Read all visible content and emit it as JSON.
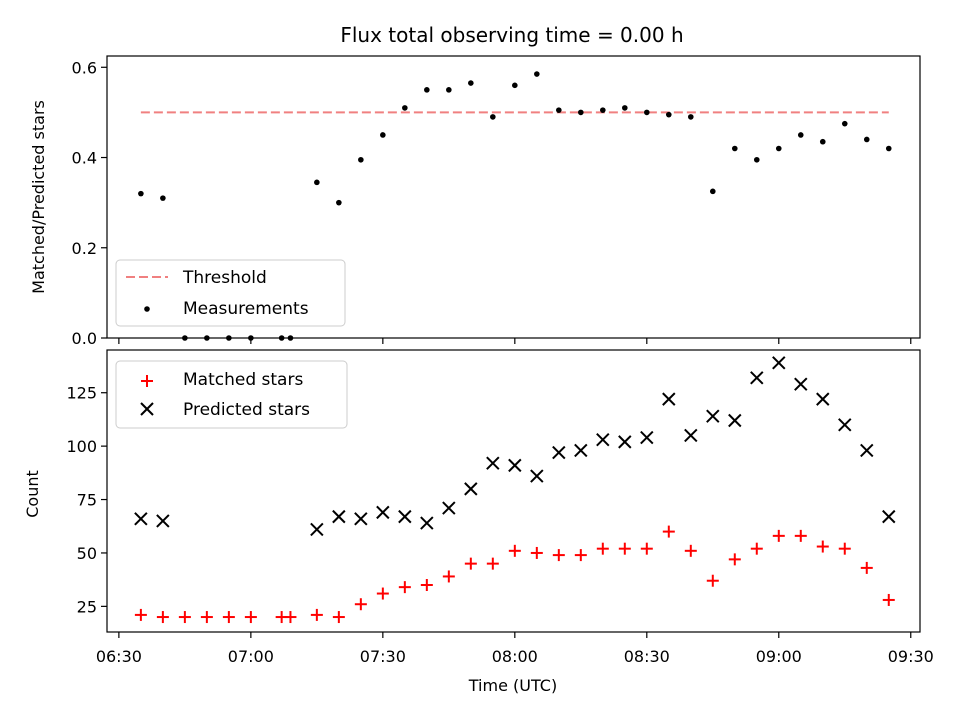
{
  "chart_data": [
    {
      "type": "scatter",
      "title": "Flux total observing time = 0.00 h",
      "ylabel": "Matched/Predicted stars",
      "ylim": [
        0,
        0.6
      ],
      "yticks": [
        "0.0",
        "0.2",
        "0.4",
        "0.6"
      ],
      "legend_position": "lower-left",
      "threshold": {
        "name": "Threshold",
        "value": 0.5,
        "x_start": "06:35",
        "x_end": "09:25",
        "color": "#f08080"
      },
      "series": [
        {
          "name": "Measurements",
          "color": "#000000",
          "x": [
            "06:35",
            "06:40",
            "06:45",
            "06:50",
            "06:55",
            "07:00",
            "07:07",
            "07:09",
            "07:15",
            "07:20",
            "07:25",
            "07:30",
            "07:35",
            "07:40",
            "07:45",
            "07:50",
            "07:55",
            "08:00",
            "08:05",
            "08:10",
            "08:15",
            "08:20",
            "08:25",
            "08:30",
            "08:35",
            "08:40",
            "08:45",
            "08:50",
            "08:55",
            "09:00",
            "09:05",
            "09:10",
            "09:15",
            "09:20",
            "09:25"
          ],
          "y": [
            0.32,
            0.31,
            0.0,
            0.0,
            0.0,
            0.0,
            0.0,
            0.0,
            0.345,
            0.3,
            0.395,
            0.45,
            0.51,
            0.55,
            0.55,
            0.565,
            0.49,
            0.56,
            0.585,
            0.505,
            0.5,
            0.505,
            0.51,
            0.5,
            0.495,
            0.49,
            0.325,
            0.42,
            0.395,
            0.42,
            0.45,
            0.435,
            0.475,
            0.44,
            0.42
          ]
        }
      ]
    },
    {
      "type": "scatter",
      "xlabel": "Time (UTC)",
      "ylabel": "Count",
      "ylim": [
        13,
        145
      ],
      "yticks": [
        "25",
        "50",
        "75",
        "100",
        "125"
      ],
      "xlim": [
        "06:30",
        "09:30"
      ],
      "xticks": [
        "06:30",
        "07:00",
        "07:30",
        "08:00",
        "08:30",
        "09:00",
        "09:30"
      ],
      "legend_position": "upper-left",
      "series": [
        {
          "name": "Matched stars",
          "marker": "plus",
          "color": "#ff0000",
          "x": [
            "06:35",
            "06:40",
            "06:45",
            "06:50",
            "06:55",
            "07:00",
            "07:07",
            "07:09",
            "07:15",
            "07:20",
            "07:25",
            "07:30",
            "07:35",
            "07:40",
            "07:45",
            "07:50",
            "07:55",
            "08:00",
            "08:05",
            "08:10",
            "08:15",
            "08:20",
            "08:25",
            "08:30",
            "08:35",
            "08:40",
            "08:45",
            "08:50",
            "08:55",
            "09:00",
            "09:05",
            "09:10",
            "09:15",
            "09:20",
            "09:25"
          ],
          "y": [
            21,
            20,
            20,
            20,
            20,
            20,
            20,
            20,
            21,
            20,
            26,
            31,
            34,
            35,
            39,
            45,
            45,
            51,
            50,
            49,
            49,
            52,
            52,
            52,
            60,
            51,
            37,
            47,
            52,
            58,
            58,
            53,
            52,
            43,
            28
          ]
        },
        {
          "name": "Predicted stars",
          "marker": "x",
          "color": "#000000",
          "x": [
            "06:35",
            "06:40",
            "07:15",
            "07:20",
            "07:25",
            "07:30",
            "07:35",
            "07:40",
            "07:45",
            "07:50",
            "07:55",
            "08:00",
            "08:05",
            "08:10",
            "08:15",
            "08:20",
            "08:25",
            "08:30",
            "08:35",
            "08:40",
            "08:45",
            "08:50",
            "08:55",
            "09:00",
            "09:05",
            "09:10",
            "09:15",
            "09:20",
            "09:25"
          ],
          "y": [
            66,
            65,
            61,
            67,
            66,
            69,
            67,
            64,
            71,
            80,
            92,
            91,
            86,
            97,
            98,
            103,
            102,
            104,
            122,
            105,
            114,
            112,
            132,
            139,
            129,
            122,
            110,
            98,
            67
          ]
        }
      ]
    }
  ]
}
